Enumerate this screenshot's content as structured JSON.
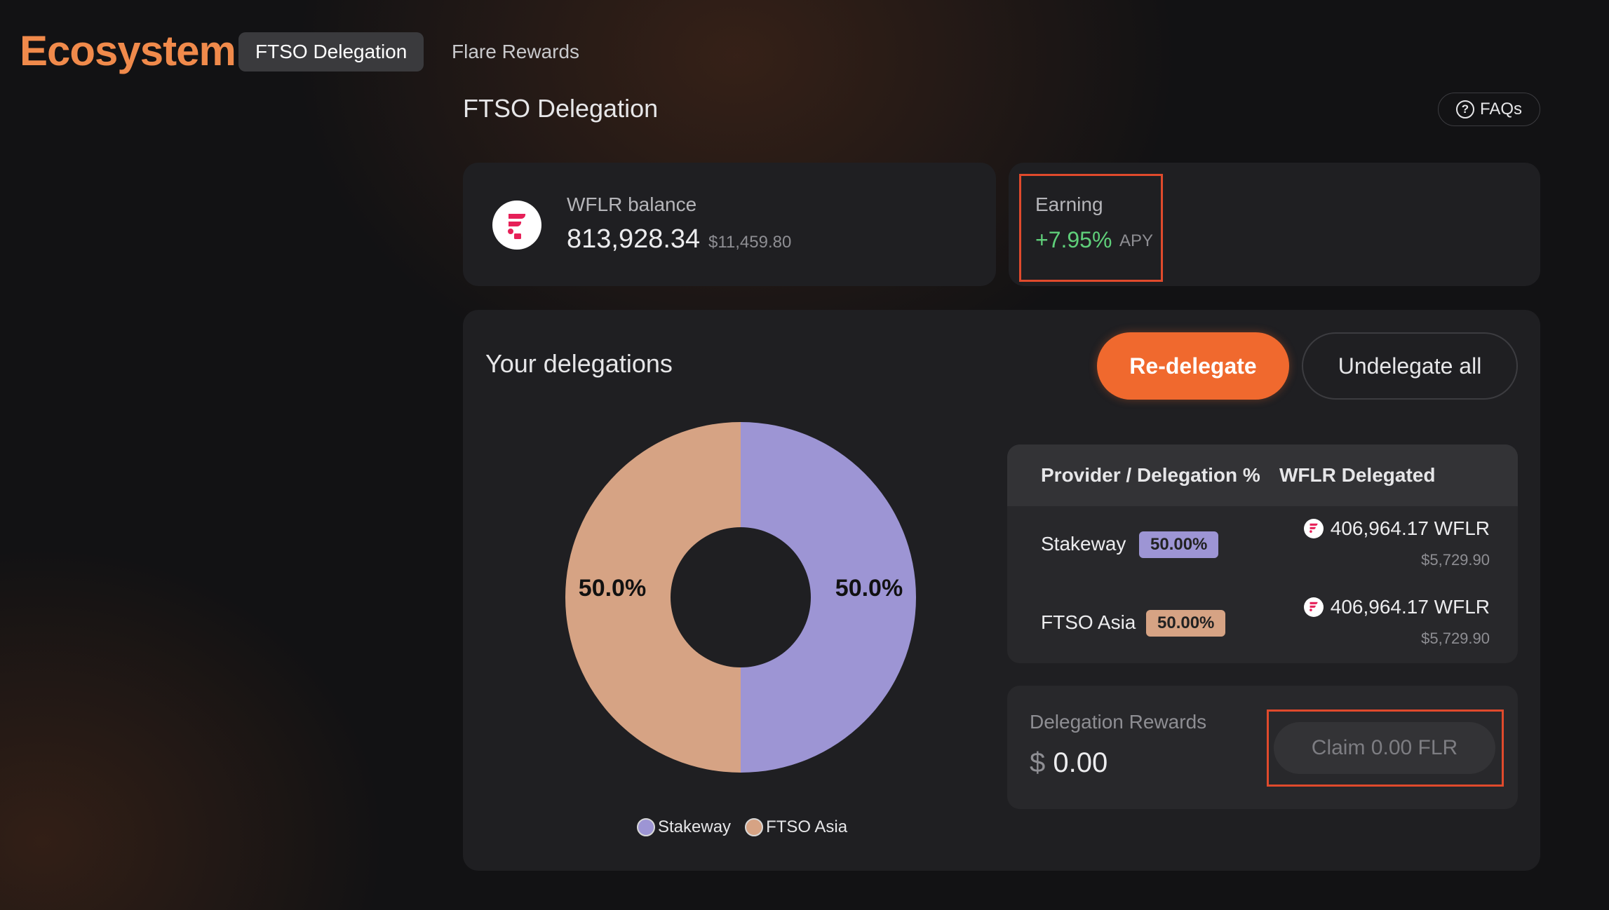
{
  "app": {
    "brand": "Ecosystem",
    "tabs": [
      {
        "label": "FTSO Delegation",
        "active": true
      },
      {
        "label": "Flare Rewards",
        "active": false
      }
    ]
  },
  "page": {
    "title": "FTSO Delegation",
    "faq_label": "FAQs"
  },
  "balance": {
    "label": "WFLR balance",
    "value": "813,928.34",
    "usd": "$11,459.80"
  },
  "earning": {
    "label": "Earning",
    "value": "+7.95%",
    "unit": "APY"
  },
  "delegations": {
    "title": "Your delegations",
    "redelegate_label": "Re-delegate",
    "undelegate_label": "Undelegate all",
    "chart_labels": [
      "50.0%",
      "50.0%"
    ],
    "legend": [
      "Stakeway",
      "FTSO Asia"
    ],
    "colors": {
      "stakeway": "#9d95d4",
      "ftso_asia": "#d6a384"
    },
    "table": {
      "headers": [
        "Provider / Delegation %",
        "WFLR Delegated"
      ],
      "rows": [
        {
          "provider": "Stakeway",
          "pct": "50.00%",
          "amount": "406,964.17 WFLR",
          "usd": "$5,729.90"
        },
        {
          "provider": "FTSO Asia",
          "pct": "50.00%",
          "amount": "406,964.17 WFLR",
          "usd": "$5,729.90"
        }
      ]
    }
  },
  "rewards": {
    "label": "Delegation Rewards",
    "currency": "$",
    "value": "0.00",
    "claim_label": "Claim 0.00 FLR"
  },
  "chart_data": {
    "type": "pie",
    "categories": [
      "Stakeway",
      "FTSO Asia"
    ],
    "values": [
      50.0,
      50.0
    ]
  }
}
